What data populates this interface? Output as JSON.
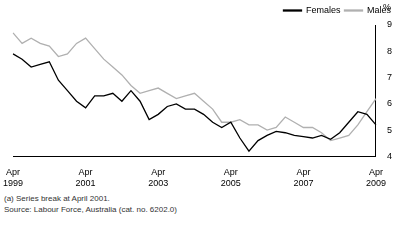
{
  "chart_data": {
    "type": "line",
    "y_label": "%",
    "notes": [
      "(a) Series break at April 2001.",
      "Source: Labour Force, Australia (cat. no. 6202.0)"
    ],
    "categories": [
      "Apr 1999",
      null,
      null,
      null,
      null,
      null,
      null,
      null,
      "Apr 2001",
      null,
      null,
      null,
      null,
      null,
      null,
      null,
      "Apr 2003",
      null,
      null,
      null,
      null,
      null,
      null,
      null,
      "Apr 2005",
      null,
      null,
      null,
      null,
      null,
      null,
      null,
      "Apr 2007",
      null,
      null,
      null,
      null,
      null,
      null,
      null,
      "Apr 2009"
    ],
    "series": [
      {
        "name": "Females",
        "color": "#000000",
        "values": [
          7.9,
          7.7,
          7.4,
          7.5,
          7.6,
          6.9,
          6.5,
          6.1,
          5.85,
          6.3,
          6.3,
          6.4,
          6.1,
          6.5,
          6.1,
          5.4,
          5.6,
          5.9,
          6.0,
          5.8,
          5.8,
          5.6,
          5.3,
          5.1,
          5.3,
          4.7,
          4.2,
          4.6,
          4.8,
          4.95,
          4.9,
          4.8,
          4.75,
          4.7,
          4.8,
          4.65,
          4.9,
          5.3,
          5.7,
          5.6,
          5.2
        ]
      },
      {
        "name": "Males",
        "color": "#b0b0b0",
        "values": [
          8.7,
          8.3,
          8.5,
          8.3,
          8.2,
          7.8,
          7.9,
          8.3,
          8.5,
          8.1,
          7.7,
          7.4,
          7.1,
          6.7,
          6.4,
          6.5,
          6.6,
          6.4,
          6.2,
          6.3,
          6.4,
          6.1,
          5.8,
          5.3,
          5.3,
          5.4,
          5.2,
          5.2,
          5.0,
          5.1,
          5.5,
          5.3,
          5.1,
          5.1,
          4.9,
          4.6,
          4.7,
          4.8,
          5.2,
          5.7,
          6.2
        ]
      }
    ],
    "ylim": [
      4,
      9
    ],
    "yticks": [
      4,
      5,
      6,
      7,
      8,
      9
    ],
    "grid": false,
    "legend": "top-right"
  }
}
